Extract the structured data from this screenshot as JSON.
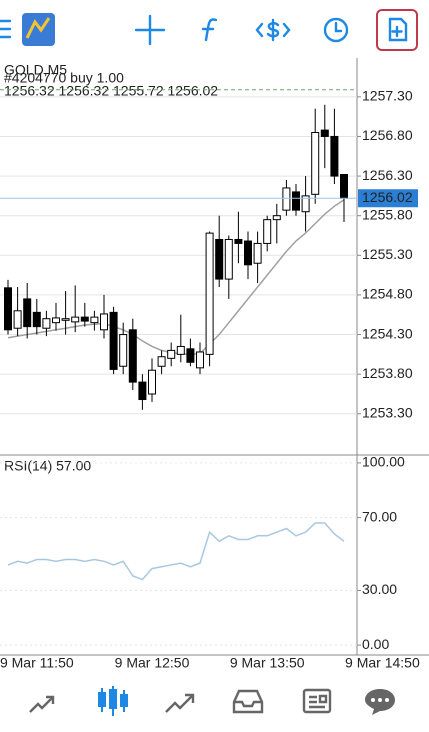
{
  "chart_data": [
    {
      "type": "candlestick",
      "title": "GOLD,M5",
      "order_label": "#4204770 buy 1.00",
      "order_price": 1257.39,
      "order_color": "#6aa86a",
      "ohlc_text": "1256.32 1256.32 1255.72 1256.02",
      "bid": 1256.02,
      "bid_color": "#2a7fd4",
      "up_color": "#ffffff",
      "down_color": "#000000",
      "categories": [
        null,
        null,
        null,
        "9 Mar 11:50",
        null,
        null,
        null,
        null,
        null,
        null,
        null,
        null,
        null,
        null,
        null,
        "9 Mar 12:50",
        null,
        null,
        null,
        null,
        null,
        null,
        null,
        null,
        null,
        null,
        null,
        "9 Mar 13:50",
        null,
        null,
        null,
        null,
        null,
        null,
        null,
        null,
        null,
        null,
        null,
        "9 Mar 14:50"
      ],
      "open": [
        1254.89,
        1254.38,
        1254.75,
        1254.58,
        1254.38,
        1254.45,
        1254.48,
        1254.46,
        1254.52,
        1254.45,
        1254.36,
        1254.58,
        1253.9,
        1254.36,
        1253.7,
        1253.55,
        1253.9,
        1254.0,
        1254.05,
        1254.12,
        1253.88,
        1254.05,
        1255.5,
        1255.0,
        1255.5,
        1255.48,
        1255.2,
        1255.45,
        1255.75,
        1255.87,
        1256.1,
        1255.85,
        1256.07,
        1256.88,
        1256.8,
        1256.32,
        null,
        null,
        null,
        null
      ],
      "high": [
        1254.99,
        1254.9,
        1254.95,
        1254.75,
        1254.6,
        1254.7,
        1254.85,
        1254.92,
        1254.7,
        1254.6,
        1254.8,
        1254.65,
        1254.45,
        1254.5,
        1253.8,
        1254.0,
        1254.1,
        1254.2,
        1254.55,
        1254.25,
        1254.2,
        1255.6,
        1255.8,
        1255.55,
        1255.85,
        1255.6,
        1255.6,
        1255.8,
        1255.95,
        1256.25,
        1256.2,
        1256.3,
        1257.15,
        1257.2,
        1257.15,
        1256.32,
        null,
        null,
        null,
        null
      ],
      "low": [
        1254.3,
        1254.28,
        1254.25,
        1254.3,
        1254.28,
        1254.35,
        1254.3,
        1254.33,
        1254.4,
        1254.35,
        1254.25,
        1253.8,
        1253.8,
        1253.6,
        1253.35,
        1253.45,
        1253.8,
        1253.9,
        1253.95,
        1253.9,
        1253.8,
        1253.9,
        1254.9,
        1254.75,
        1255.2,
        1255.0,
        1254.95,
        1255.35,
        1255.45,
        1255.8,
        1255.8,
        1255.6,
        1255.95,
        1256.4,
        1256.2,
        1255.72,
        null,
        null,
        null,
        null
      ],
      "close": [
        1254.36,
        1254.6,
        1254.4,
        1254.4,
        1254.5,
        1254.51,
        1254.5,
        1254.52,
        1254.47,
        1254.52,
        1254.56,
        1253.86,
        1254.3,
        1253.7,
        1253.48,
        1253.85,
        1254.02,
        1254.1,
        1254.15,
        1253.95,
        1254.08,
        1255.58,
        1255.0,
        1255.5,
        1255.45,
        1255.18,
        1255.45,
        1255.75,
        1255.8,
        1256.15,
        1255.87,
        1256.05,
        1256.85,
        1256.8,
        1256.3,
        1256.02,
        null,
        null,
        null,
        null
      ],
      "ma": {
        "color": "#a0a0a0",
        "values": [
          1254.26,
          1254.28,
          1254.3,
          1254.32,
          1254.34,
          1254.36,
          1254.38,
          1254.4,
          1254.42,
          1254.43,
          1254.44,
          1254.4,
          1254.36,
          1254.3,
          1254.22,
          1254.15,
          1254.1,
          1254.07,
          1254.06,
          1254.05,
          1254.06,
          1254.18,
          1254.3,
          1254.45,
          1254.6,
          1254.75,
          1254.9,
          1255.05,
          1255.2,
          1255.35,
          1255.48,
          1255.58,
          1255.7,
          1255.82,
          1255.92,
          1256.0,
          null,
          null,
          null,
          null
        ]
      },
      "ylim": [
        1252.78,
        1257.79
      ],
      "yticks": [
        {
          "value": 1253.3,
          "label": "1253.30"
        },
        {
          "value": 1253.8,
          "label": "1253.80"
        },
        {
          "value": 1254.3,
          "label": "1254.30"
        },
        {
          "value": 1254.8,
          "label": "1254.80"
        },
        {
          "value": 1255.3,
          "label": "1255.30"
        },
        {
          "value": 1255.8,
          "label": "1255.80"
        },
        {
          "value": 1256.3,
          "label": "1256.30"
        },
        {
          "value": 1256.8,
          "label": "1256.80"
        },
        {
          "value": 1257.3,
          "label": "1257.30"
        }
      ]
    },
    {
      "type": "line",
      "title": "RSI(14) 57.00",
      "color": "#a8c8e0",
      "values": [
        44,
        46,
        45,
        47,
        47,
        46,
        47,
        47,
        46,
        47,
        46,
        44,
        46,
        38,
        36,
        42,
        43,
        44,
        45,
        43,
        45,
        62,
        57,
        60,
        58,
        58,
        60,
        60,
        62,
        64,
        60,
        62,
        67,
        67,
        61,
        57,
        null,
        null,
        null,
        null
      ],
      "ylim": [
        -5.43,
        104.35
      ],
      "yticks": [
        {
          "value": 0,
          "label": "0.00"
        },
        {
          "value": 30,
          "label": "30.00"
        },
        {
          "value": 70,
          "label": "70.00"
        },
        {
          "value": 100,
          "label": "100.00"
        }
      ]
    }
  ]
}
